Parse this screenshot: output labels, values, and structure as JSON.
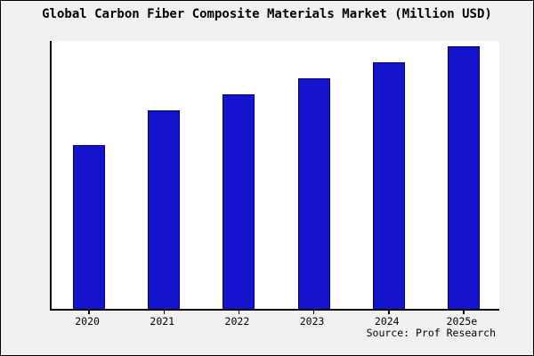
{
  "figure": {
    "title": "Global Carbon Fiber Composite Materials Market (Million USD)",
    "source_credit": "Source: Prof Research"
  },
  "colors": {
    "background": "#f0f0f0",
    "plot_background": "#ffffff",
    "bar_fill": "#1414cd",
    "bar_border": "#000066",
    "axis": "#000000",
    "text": "#000000"
  },
  "chart_data": {
    "type": "bar",
    "title": "Global Carbon Fiber Composite Materials Market (Million USD)",
    "categories": [
      "2020",
      "2021",
      "2022",
      "2023",
      "2024",
      "2025e"
    ],
    "values": [
      61,
      74,
      80,
      86,
      92,
      98
    ],
    "xlabel": "",
    "ylabel": "",
    "ylim": [
      0,
      100
    ],
    "y_axis_tick_labels_visible": false,
    "grid": false,
    "legend": false,
    "bar_color": "#1414cd",
    "source": "Source: Prof Research",
    "value_note": "no y-axis labels shown; values estimated as percent of plot height"
  }
}
